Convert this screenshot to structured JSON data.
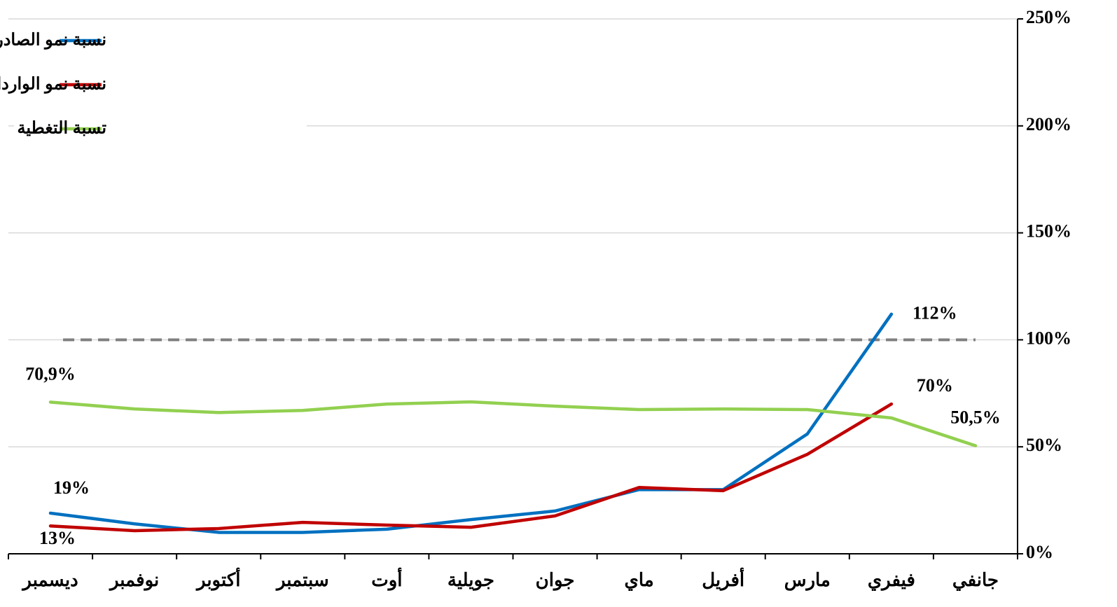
{
  "chart_data": {
    "type": "line",
    "categories": [
      "جانفي",
      "فيفري",
      "مارس",
      "أفريل",
      "ماي",
      "جوان",
      "جويلية",
      "أوت",
      "سبتمبر",
      "أكتوبر",
      "نوفمبر",
      "ديسمبر"
    ],
    "series": [
      {
        "name": "نسبة نمو الصادرات",
        "color": "#0070c0",
        "values": [
          null,
          112,
          56,
          30,
          30,
          20,
          16,
          11.5,
          10,
          10,
          14,
          19
        ],
        "value_labels": [
          null,
          "112%",
          null,
          null,
          null,
          null,
          null,
          null,
          null,
          null,
          null,
          "19%"
        ]
      },
      {
        "name": "نسبة نمو الواردات",
        "color": "#c00000",
        "values": [
          null,
          70,
          46.5,
          29.5,
          31,
          17.7,
          12.4,
          13.4,
          14.7,
          11.8,
          10.8,
          13
        ],
        "value_labels": [
          null,
          "70%",
          null,
          null,
          null,
          null,
          null,
          null,
          null,
          null,
          null,
          "13%"
        ]
      },
      {
        "name": "تسبة التغطية",
        "color": "#92d050",
        "values": [
          50.5,
          63.5,
          67.4,
          67.7,
          67.4,
          69,
          71,
          70,
          67,
          66,
          67.7,
          70.9
        ],
        "value_labels": [
          "50,5%",
          null,
          null,
          null,
          null,
          null,
          null,
          null,
          null,
          null,
          null,
          "70,9%"
        ]
      }
    ],
    "reference_line": 100,
    "ylim": [
      0,
      250
    ],
    "yticks": [
      {
        "value": 0,
        "label": "0%"
      },
      {
        "value": 50,
        "label": "50%"
      },
      {
        "value": 100,
        "label": "100%"
      },
      {
        "value": 150,
        "label": "150%"
      },
      {
        "value": 200,
        "label": "200%"
      },
      {
        "value": 250,
        "label": "250%"
      }
    ],
    "grid": true,
    "x_reversed": true,
    "y_axis_side": "right",
    "legend": "upper left"
  }
}
